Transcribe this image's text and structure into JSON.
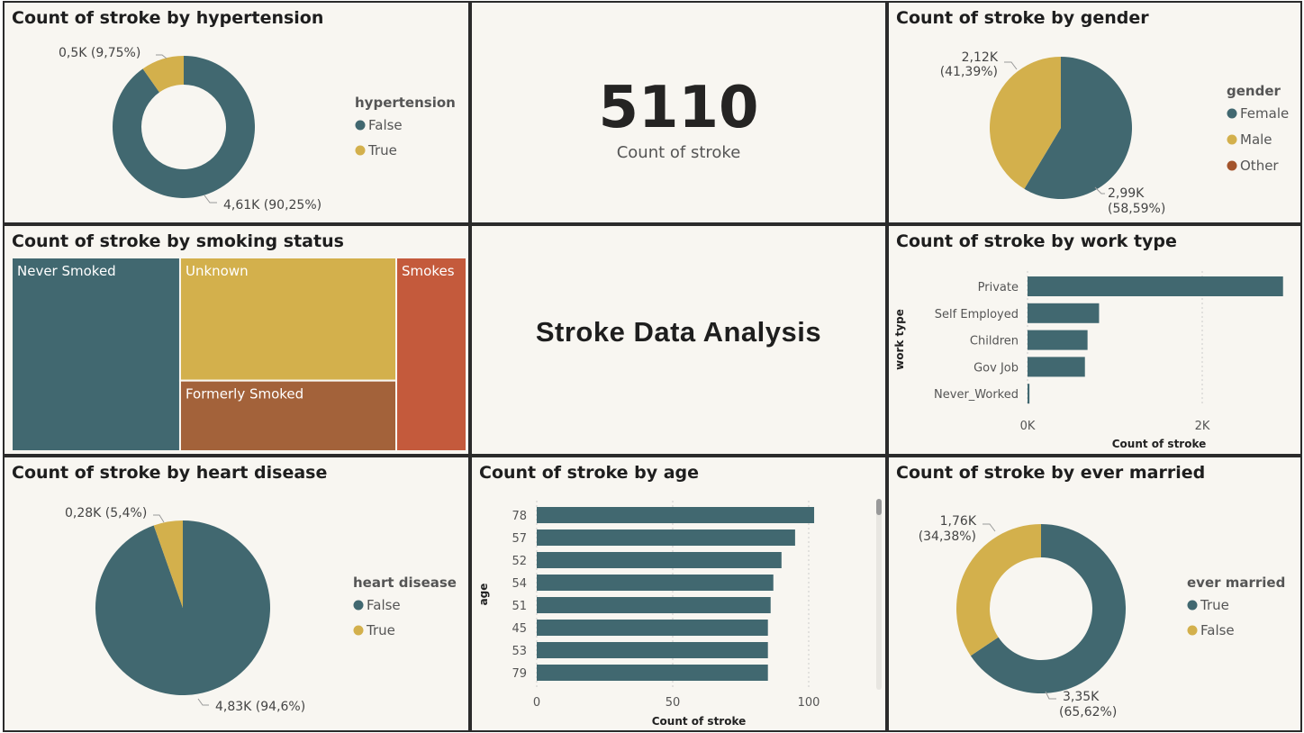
{
  "colors": {
    "teal": "#416870",
    "gold": "#d3b04c",
    "brown": "#a3623a",
    "orange": "#c45a3c",
    "other": "#a3542c"
  },
  "hypertension": {
    "title": "Count of stroke by hypertension",
    "legend_title": "hypertension",
    "items": [
      {
        "name": "False",
        "label": "4,61K (90,25%)",
        "value": 90.25,
        "color": "#416870"
      },
      {
        "name": "True",
        "label": "0,5K (9,75%)",
        "value": 9.75,
        "color": "#d3b04c"
      }
    ]
  },
  "kpi": {
    "value": "5110",
    "label": "Count of stroke"
  },
  "gender": {
    "title": "Count of stroke by gender",
    "legend_title": "gender",
    "items": [
      {
        "name": "Female",
        "label1": "2,99K",
        "label2": "(58,59%)",
        "value": 58.59,
        "color": "#416870"
      },
      {
        "name": "Male",
        "label1": "2,12K",
        "label2": "(41,39%)",
        "value": 41.39,
        "color": "#d3b04c"
      },
      {
        "name": "Other",
        "value": 0.02,
        "color": "#a3542c"
      }
    ]
  },
  "smoking": {
    "title": "Count of stroke by smoking status",
    "labels": [
      "Never Smoked",
      "Unknown",
      "Formerly Smoked",
      "Smokes"
    ]
  },
  "main_title": "Stroke Data Analysis",
  "worktype": {
    "title": "Count of stroke by work type",
    "axis_label": "work type",
    "x_label": "Count of stroke",
    "ticks": [
      "0K",
      "2K"
    ]
  },
  "heart": {
    "title": "Count of stroke by heart disease",
    "legend_title": "heart disease",
    "items": [
      {
        "name": "False",
        "label": "4,83K (94,6%)",
        "value": 94.6,
        "color": "#416870"
      },
      {
        "name": "True",
        "label": "0,28K (5,4%)",
        "value": 5.4,
        "color": "#d3b04c"
      }
    ]
  },
  "age": {
    "title": "Count of stroke by age",
    "axis_label": "age",
    "x_label": "Count of stroke",
    "ticks": [
      "0",
      "50",
      "100"
    ]
  },
  "married": {
    "title": "Count of stroke by ever married",
    "legend_title": "ever married",
    "items": [
      {
        "name": "True",
        "label1": "3,35K",
        "label2": "(65,62%)",
        "value": 65.62,
        "color": "#416870"
      },
      {
        "name": "False",
        "label1": "1,76K",
        "label2": "(34,38%)",
        "value": 34.38,
        "color": "#d3b04c"
      }
    ]
  },
  "chart_data": [
    {
      "type": "pie",
      "title": "Count of stroke by hypertension",
      "categories": [
        "False",
        "True"
      ],
      "values": [
        4612,
        498
      ]
    },
    {
      "type": "pie",
      "title": "Count of stroke by gender",
      "categories": [
        "Female",
        "Male",
        "Other"
      ],
      "values": [
        2994,
        2115,
        1
      ]
    },
    {
      "type": "heatmap",
      "title": "Count of stroke by smoking status",
      "categories": [
        "Never Smoked",
        "Unknown",
        "Formerly Smoked",
        "Smokes"
      ],
      "values": [
        1892,
        1544,
        885,
        789
      ]
    },
    {
      "type": "bar",
      "title": "Count of stroke by work type",
      "categories": [
        "Private",
        "Self Employed",
        "Children",
        "Gov Job",
        "Never_Worked"
      ],
      "values": [
        2925,
        819,
        687,
        657,
        22
      ],
      "xlabel": "Count of stroke",
      "ylabel": "work type",
      "xlim": [
        0,
        3000
      ]
    },
    {
      "type": "pie",
      "title": "Count of stroke by heart disease",
      "categories": [
        "False",
        "True"
      ],
      "values": [
        4834,
        276
      ]
    },
    {
      "type": "bar",
      "title": "Count of stroke by age",
      "categories": [
        "78",
        "57",
        "52",
        "54",
        "51",
        "45",
        "53",
        "79"
      ],
      "values": [
        102,
        95,
        90,
        87,
        86,
        85,
        85,
        85
      ],
      "xlabel": "Count of stroke",
      "ylabel": "age",
      "xlim": [
        0,
        100
      ]
    },
    {
      "type": "pie",
      "title": "Count of stroke by ever married",
      "categories": [
        "True",
        "False"
      ],
      "values": [
        3353,
        1757
      ]
    }
  ]
}
